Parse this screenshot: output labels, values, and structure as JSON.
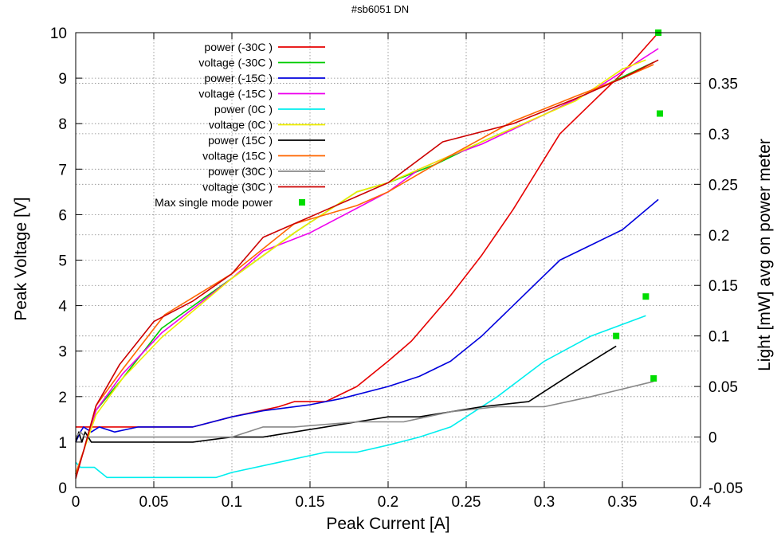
{
  "chart_data": {
    "type": "line",
    "title": "#sb6051 DN",
    "xlabel": "Peak Current [A]",
    "ylabel": "Peak Voltage [V]",
    "y2label": "Light [mW] avg on power meter",
    "xlim": [
      0,
      0.4
    ],
    "ylim": [
      0,
      10
    ],
    "y2lim": [
      -0.05,
      0.4
    ],
    "xticks": [
      "0",
      "0.05",
      "0.1",
      "0.15",
      "0.2",
      "0.25",
      "0.3",
      "0.35",
      "0.4"
    ],
    "yticks": [
      "0",
      "1",
      "2",
      "3",
      "4",
      "5",
      "6",
      "7",
      "8",
      "9",
      "10"
    ],
    "y2ticks": [
      "-0.05",
      "0",
      "0.05",
      "0.1",
      "0.15",
      "0.2",
      "0.25",
      "0.3",
      "0.35"
    ],
    "grid": true,
    "legend_position": "top-left",
    "series": [
      {
        "name": "power (-30C )",
        "axis": "y2",
        "color": "#e60000",
        "x": [
          0,
          0.01,
          0.03,
          0.06,
          0.075,
          0.1,
          0.13,
          0.14,
          0.16,
          0.18,
          0.2,
          0.215,
          0.24,
          0.26,
          0.28,
          0.3,
          0.31,
          0.33,
          0.35,
          0.373
        ],
        "y": [
          0.01,
          0.01,
          0.01,
          0.01,
          0.01,
          0.02,
          0.03,
          0.035,
          0.035,
          0.05,
          0.075,
          0.095,
          0.14,
          0.18,
          0.225,
          0.275,
          0.3,
          0.33,
          0.36,
          0.4
        ]
      },
      {
        "name": "voltage (-30C )",
        "axis": "y1",
        "color": "#00cc00",
        "x": [
          0,
          0.005,
          0.013,
          0.03,
          0.055,
          0.1,
          0.14,
          0.18,
          0.2,
          0.23,
          0.26,
          0.3,
          0.33,
          0.37
        ],
        "y": [
          0.3,
          0.8,
          1.7,
          2.4,
          3.5,
          4.6,
          5.6,
          6.5,
          6.7,
          7.1,
          7.6,
          8.2,
          8.7,
          9.35
        ]
      },
      {
        "name": "power (-15C )",
        "axis": "y2",
        "color": "#0000dd",
        "x": [
          0,
          0.003,
          0.005,
          0.01,
          0.015,
          0.025,
          0.04,
          0.075,
          0.1,
          0.12,
          0.15,
          0.17,
          0.2,
          0.22,
          0.24,
          0.26,
          0.29,
          0.31,
          0.33,
          0.35,
          0.373
        ],
        "y": [
          -0.005,
          0.005,
          0.01,
          0.005,
          0.01,
          0.005,
          0.01,
          0.01,
          0.02,
          0.026,
          0.032,
          0.038,
          0.05,
          0.06,
          0.075,
          0.1,
          0.145,
          0.175,
          0.19,
          0.205,
          0.235
        ]
      },
      {
        "name": "voltage (-15C )",
        "axis": "y1",
        "color": "#ee00ee",
        "x": [
          0,
          0.005,
          0.013,
          0.03,
          0.055,
          0.1,
          0.12,
          0.15,
          0.2,
          0.22,
          0.24,
          0.26,
          0.3,
          0.33,
          0.373
        ],
        "y": [
          0.3,
          0.8,
          1.7,
          2.5,
          3.4,
          4.6,
          5.2,
          5.6,
          6.5,
          7.0,
          7.3,
          7.55,
          8.2,
          8.7,
          9.65
        ]
      },
      {
        "name": "power (0C )",
        "axis": "y2",
        "color": "#00eeee",
        "x": [
          0,
          0.003,
          0.012,
          0.02,
          0.04,
          0.075,
          0.09,
          0.1,
          0.13,
          0.16,
          0.18,
          0.2,
          0.22,
          0.24,
          0.27,
          0.3,
          0.33,
          0.365
        ],
        "y": [
          -0.025,
          -0.03,
          -0.03,
          -0.04,
          -0.04,
          -0.04,
          -0.04,
          -0.035,
          -0.025,
          -0.015,
          -0.015,
          -0.008,
          0,
          0.01,
          0.04,
          0.075,
          0.1,
          0.12
        ]
      },
      {
        "name": "voltage (0C )",
        "axis": "y1",
        "color": "#eeee00",
        "x": [
          0,
          0.005,
          0.013,
          0.03,
          0.055,
          0.1,
          0.14,
          0.18,
          0.2,
          0.24,
          0.28,
          0.32,
          0.35,
          0.365
        ],
        "y": [
          0.3,
          0.8,
          1.6,
          2.4,
          3.3,
          4.6,
          5.6,
          6.5,
          6.7,
          7.3,
          7.9,
          8.5,
          9.2,
          9.4
        ]
      },
      {
        "name": "power (15C )",
        "axis": "y2",
        "color": "#000000",
        "x": [
          0,
          0.002,
          0.004,
          0.006,
          0.01,
          0.04,
          0.075,
          0.1,
          0.12,
          0.16,
          0.18,
          0.2,
          0.22,
          0.26,
          0.29,
          0.32,
          0.346
        ],
        "y": [
          -0.005,
          0.005,
          -0.005,
          0.005,
          -0.005,
          -0.005,
          -0.005,
          0,
          0,
          0.01,
          0.015,
          0.02,
          0.02,
          0.03,
          0.035,
          0.065,
          0.09
        ]
      },
      {
        "name": "voltage (15C )",
        "axis": "y1",
        "color": "#ff6600",
        "x": [
          0,
          0.005,
          0.013,
          0.03,
          0.057,
          0.1,
          0.14,
          0.18,
          0.2,
          0.24,
          0.28,
          0.32,
          0.35,
          0.37
        ],
        "y": [
          0.3,
          0.8,
          1.8,
          2.6,
          3.8,
          4.7,
          5.8,
          6.2,
          6.5,
          7.3,
          8.05,
          8.6,
          9.0,
          9.3
        ]
      },
      {
        "name": "power (30C )",
        "axis": "y2",
        "color": "#888888",
        "x": [
          0,
          0.003,
          0.006,
          0.01,
          0.05,
          0.1,
          0.12,
          0.14,
          0.18,
          0.21,
          0.24,
          0.27,
          0.3,
          0.33,
          0.37
        ],
        "y": [
          0,
          0.005,
          0,
          0,
          0,
          0,
          0.01,
          0.01,
          0.015,
          0.015,
          0.025,
          0.03,
          0.03,
          0.04,
          0.055
        ]
      },
      {
        "name": "voltage (30C )",
        "axis": "y1",
        "color": "#cc0000",
        "x": [
          0,
          0.005,
          0.013,
          0.028,
          0.05,
          0.075,
          0.1,
          0.12,
          0.16,
          0.2,
          0.235,
          0.28,
          0.32,
          0.35,
          0.373
        ],
        "y": [
          0.2,
          0.8,
          1.8,
          2.7,
          3.65,
          4.1,
          4.7,
          5.5,
          6.1,
          6.7,
          7.6,
          8.0,
          8.55,
          9.0,
          9.4
        ]
      },
      {
        "name": "Max single mode power",
        "axis": "y2",
        "color": "#00dd00",
        "style": "points",
        "x": [
          0.373,
          0.374,
          0.346,
          0.365,
          0.37
        ],
        "y": [
          0.4,
          0.32,
          0.1,
          0.139,
          0.058
        ]
      }
    ]
  }
}
